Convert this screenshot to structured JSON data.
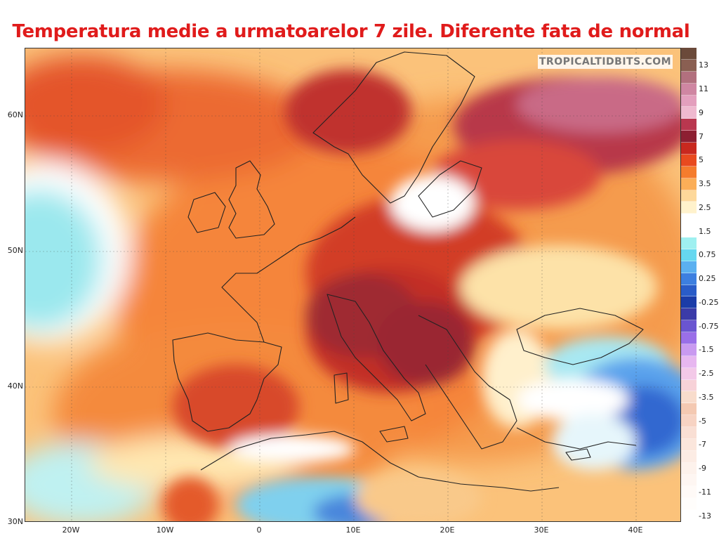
{
  "title": "Temperatura medie a urmatoarelor 7 zile. Diferente fata de normal",
  "watermark": "TROPICALTIDBITS.COM",
  "lat_ticks": [
    {
      "label": "60N",
      "lat": 60
    },
    {
      "label": "50N",
      "lat": 50
    },
    {
      "label": "40N",
      "lat": 40
    },
    {
      "label": "30N",
      "lat": 30
    }
  ],
  "lon_ticks": [
    {
      "label": "20W",
      "lon": -20
    },
    {
      "label": "10W",
      "lon": -10
    },
    {
      "label": "0",
      "lon": 0
    },
    {
      "label": "10E",
      "lon": 10
    },
    {
      "label": "20E",
      "lon": 20
    },
    {
      "label": "30E",
      "lon": 30
    },
    {
      "label": "40E",
      "lon": 40
    }
  ],
  "legend": {
    "labels": [
      "13",
      "11",
      "9",
      "7",
      "5",
      "3.5",
      "2.5",
      "1.5",
      "0.75",
      "0.25",
      "-0.25",
      "-0.75",
      "-1.5",
      "-2.5",
      "-3.5",
      "-5",
      "-7",
      "-9",
      "-11",
      "-13"
    ],
    "colors": [
      "#6b4a3a",
      "#8a5f52",
      "#b2707e",
      "#cf86a2",
      "#e39fbd",
      "#efb9cf",
      "#b9374f",
      "#8d1f32",
      "#c8281f",
      "#e84a1f",
      "#f57c2d",
      "#fbae58",
      "#fdd89a",
      "#fff2cc",
      "#ffffff",
      "#ffffff",
      "#9ff0f0",
      "#66d8f0",
      "#5bb0f0",
      "#3d7fe0",
      "#2a5cc8",
      "#1b3ca8",
      "#3b3ba8",
      "#6a55d0",
      "#9a6fe8",
      "#c99af0",
      "#e7b7f0",
      "#f3c9e8",
      "#f7d2d8",
      "#f8dccc",
      "#f4c9b2",
      "#f7d3c3",
      "#f9dfd4",
      "#fbe6dc",
      "#fcece4",
      "#fdf2ec",
      "#fef6f2",
      "#fffaf7",
      "#fffdfb",
      "#ffffff"
    ]
  },
  "map": {
    "region": "Europe",
    "lon_range": [
      -25,
      45
    ],
    "lat_range": [
      30,
      65
    ],
    "field": "7-day mean temperature anomaly",
    "warm_core": "Central Europe / Alps / Balkans",
    "cold_regions": [
      "Eastern Atlantic west of Iberia",
      "Black Sea / Anatolia",
      "Northern Africa coast",
      "Atlas / Sahara"
    ]
  }
}
